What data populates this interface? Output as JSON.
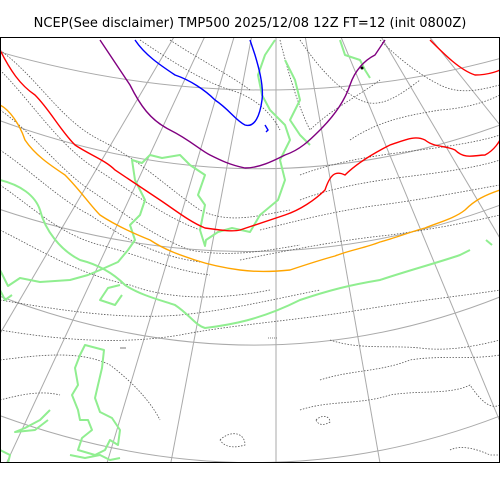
{
  "title": "NCEP(See disclaimer) TMP500 2025/12/08 12Z FT=12 (init 0800Z)",
  "colors": {
    "coastline": "#90ee90",
    "isotherm_blue": "#0000ff",
    "isotherm_purple": "#800080",
    "isotherm_red": "#ff0000",
    "isotherm_orange": "#ffa500",
    "isotherm_green": "#90ee90",
    "isotherm_minor": "#555555",
    "graticule": "#aaaaaa",
    "frame": "#000000"
  },
  "map": {
    "projection": "polar stereographic",
    "highlighted_isotherms": [
      "blue",
      "purple",
      "red",
      "orange",
      "light-green"
    ],
    "minor_isotherm_style": "dotted",
    "graticule": true
  }
}
